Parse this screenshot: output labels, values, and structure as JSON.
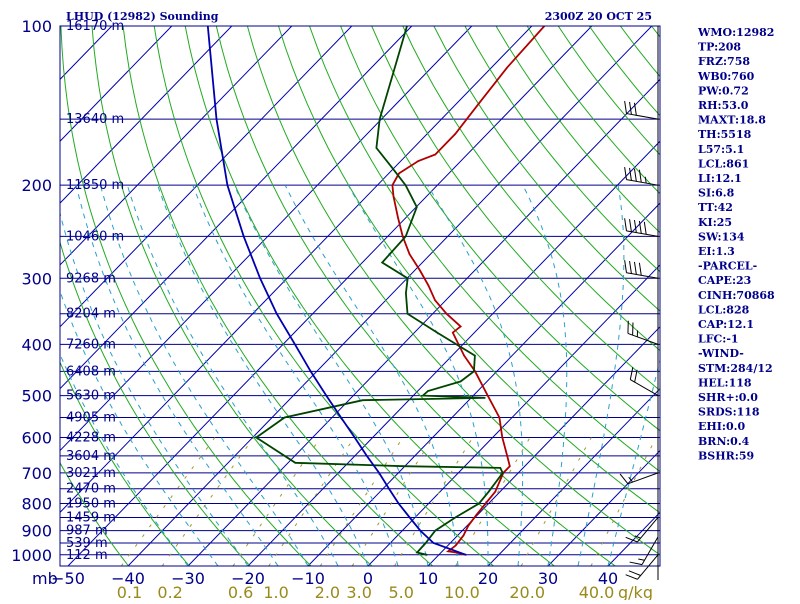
{
  "header": {
    "station_title": "LHUD (12982) Sounding",
    "valid_time": "2300Z 20 OCT 25"
  },
  "chart_data": {
    "type": "line",
    "title": "LHUD (12982) Sounding",
    "subtitle": "2300Z 20 OCT 25",
    "pressure_unit": "mb",
    "mixing_unit": "g/kg",
    "pressure_ticks": [
      100,
      200,
      300,
      400,
      500,
      600,
      700,
      800,
      900,
      1000
    ],
    "temperature_ticks": [
      -50,
      -40,
      -30,
      -20,
      -10,
      0,
      10,
      20,
      30,
      40
    ],
    "temperature_tick_labels": [
      "−50",
      "−40",
      "−30",
      "−20",
      "−10",
      "0",
      "10",
      "20",
      "30",
      "40"
    ],
    "mixing_ratio_ticks": [
      "0.1",
      "0.2",
      "0.6",
      "1.0",
      "2.0",
      "3.0",
      "5.0",
      "10.0",
      "20.0",
      "40.0"
    ],
    "height_labels": [
      {
        "p": 100,
        "label": "16170 m"
      },
      {
        "p": 150,
        "label": "13640 m"
      },
      {
        "p": 200,
        "label": "11850 m"
      },
      {
        "p": 250,
        "label": "10460 m"
      },
      {
        "p": 300,
        "label": "9268 m"
      },
      {
        "p": 350,
        "label": "8204 m"
      },
      {
        "p": 400,
        "label": "7260 m"
      },
      {
        "p": 450,
        "label": "6408 m"
      },
      {
        "p": 500,
        "label": "5630 m"
      },
      {
        "p": 550,
        "label": "4905 m"
      },
      {
        "p": 600,
        "label": "4228 m"
      },
      {
        "p": 650,
        "label": "3604 m"
      },
      {
        "p": 700,
        "label": "3021 m"
      },
      {
        "p": 750,
        "label": "2470 m"
      },
      {
        "p": 800,
        "label": "1950 m"
      },
      {
        "p": 850,
        "label": "1459 m"
      },
      {
        "p": 900,
        "label": "987 m"
      },
      {
        "p": 950,
        "label": "539 m"
      },
      {
        "p": 1000,
        "label": "112 m"
      }
    ],
    "series": [
      {
        "key": "temperature",
        "color": "#b00000",
        "points": [
          {
            "p": 1000,
            "t": 14.5
          },
          {
            "p": 990,
            "t": 12.5
          },
          {
            "p": 985,
            "t": 11.0
          },
          {
            "p": 960,
            "t": 11.3
          },
          {
            "p": 920,
            "t": 11.0
          },
          {
            "p": 880,
            "t": 10.2
          },
          {
            "p": 840,
            "t": 9.8
          },
          {
            "p": 800,
            "t": 9.5
          },
          {
            "p": 760,
            "t": 9.2
          },
          {
            "p": 700,
            "t": 7.5
          },
          {
            "p": 680,
            "t": 7.5
          },
          {
            "p": 650,
            "t": 5.4
          },
          {
            "p": 600,
            "t": 1.6
          },
          {
            "p": 550,
            "t": -2.1
          },
          {
            "p": 500,
            "t": -7.6
          },
          {
            "p": 450,
            "t": -13.6
          },
          {
            "p": 420,
            "t": -18.0
          },
          {
            "p": 380,
            "t": -23.6
          },
          {
            "p": 370,
            "t": -23.3
          },
          {
            "p": 350,
            "t": -27.7
          },
          {
            "p": 330,
            "t": -31.8
          },
          {
            "p": 310,
            "t": -35.2
          },
          {
            "p": 290,
            "t": -39.1
          },
          {
            "p": 270,
            "t": -43.5
          },
          {
            "p": 250,
            "t": -47.5
          },
          {
            "p": 230,
            "t": -51.4
          },
          {
            "p": 210,
            "t": -55.5
          },
          {
            "p": 200,
            "t": -57.5
          },
          {
            "p": 190,
            "t": -58.3
          },
          {
            "p": 180,
            "t": -57.1
          },
          {
            "p": 175,
            "t": -55.3
          },
          {
            "p": 160,
            "t": -55.3
          },
          {
            "p": 140,
            "t": -56.3
          },
          {
            "p": 120,
            "t": -57.4
          },
          {
            "p": 100,
            "t": -57.9
          }
        ]
      },
      {
        "key": "dewpoint",
        "color": "#004400",
        "points": [
          {
            "p": 1000,
            "t": 8.0
          },
          {
            "p": 990,
            "t": 6.0
          },
          {
            "p": 950,
            "t": 5.9
          },
          {
            "p": 900,
            "t": 5.5
          },
          {
            "p": 850,
            "t": 6.7
          },
          {
            "p": 800,
            "t": 8.4
          },
          {
            "p": 760,
            "t": 8.1
          },
          {
            "p": 700,
            "t": 7.4
          },
          {
            "p": 685,
            "t": 6.2
          },
          {
            "p": 680,
            "t": -10.2
          },
          {
            "p": 670,
            "t": -28.8
          },
          {
            "p": 600,
            "t": -39.4
          },
          {
            "p": 550,
            "t": -37.9
          },
          {
            "p": 510,
            "t": -27.7
          },
          {
            "p": 505,
            "t": -7.7
          },
          {
            "p": 500,
            "t": -18.4
          },
          {
            "p": 490,
            "t": -18.3
          },
          {
            "p": 470,
            "t": -14.4
          },
          {
            "p": 450,
            "t": -13.8
          },
          {
            "p": 420,
            "t": -16.2
          },
          {
            "p": 380,
            "t": -26.2
          },
          {
            "p": 350,
            "t": -34.2
          },
          {
            "p": 320,
            "t": -37.8
          },
          {
            "p": 300,
            "t": -39.9
          },
          {
            "p": 280,
            "t": -46.7
          },
          {
            "p": 250,
            "t": -47.0
          },
          {
            "p": 220,
            "t": -49.9
          },
          {
            "p": 200,
            "t": -55.3
          },
          {
            "p": 185,
            "t": -60.5
          },
          {
            "p": 170,
            "t": -66.2
          },
          {
            "p": 150,
            "t": -70.3
          },
          {
            "p": 100,
            "t": -80.8
          }
        ]
      },
      {
        "key": "parcel",
        "color": "#0000b0",
        "points": [
          {
            "p": 1000,
            "t": 14.5
          },
          {
            "p": 950,
            "t": 7.2
          },
          {
            "p": 900,
            "t": 3.0
          },
          {
            "p": 850,
            "t": -0.9
          },
          {
            "p": 800,
            "t": -5.0
          },
          {
            "p": 750,
            "t": -9.0
          },
          {
            "p": 700,
            "t": -13.2
          },
          {
            "p": 650,
            "t": -18.0
          },
          {
            "p": 600,
            "t": -23.0
          },
          {
            "p": 550,
            "t": -28.5
          },
          {
            "p": 500,
            "t": -34.5
          },
          {
            "p": 450,
            "t": -41.0
          },
          {
            "p": 400,
            "t": -48.0
          },
          {
            "p": 350,
            "t": -56.0
          },
          {
            "p": 300,
            "t": -64.5
          },
          {
            "p": 250,
            "t": -74.0
          },
          {
            "p": 200,
            "t": -85.0
          },
          {
            "p": 150,
            "t": -97.5
          },
          {
            "p": 100,
            "t": -114.0
          }
        ]
      }
    ],
    "wind_barbs": [
      {
        "p": 1000,
        "dir": 220,
        "spd": 20
      },
      {
        "p": 925,
        "dir": 210,
        "spd": 15
      },
      {
        "p": 850,
        "dir": 220,
        "spd": 15
      },
      {
        "p": 700,
        "dir": 250,
        "spd": 15
      },
      {
        "p": 500,
        "dir": 300,
        "spd": 20
      },
      {
        "p": 400,
        "dir": 290,
        "spd": 25
      },
      {
        "p": 300,
        "dir": 280,
        "spd": 40
      },
      {
        "p": 250,
        "dir": 280,
        "spd": 50
      },
      {
        "p": 200,
        "dir": 280,
        "spd": 45
      },
      {
        "p": 150,
        "dir": 280,
        "spd": 30
      }
    ],
    "colors": {
      "isobar": "#00008b",
      "isotherm": "#0000aa",
      "dry_adiabat": "#22aa22",
      "moist_adiabat": "#2aa0c8",
      "mixing_ratio": "#a09a30",
      "axis_text": "#00008b"
    }
  },
  "indices": [
    "WMO:12982",
    "TP:208",
    "FRZ:758",
    "WB0:760",
    "PW:0.72",
    "RH:53.0",
    "MAXT:18.8",
    "TH:5518",
    "L57:5.1",
    "LCL:861",
    "LI:12.1",
    "SI:6.8",
    "TT:42",
    "KI:25",
    "SW:134",
    "EI:1.3",
    "-PARCEL-",
    "CAPE:23",
    "CINH:70868",
    "LCL:828",
    "CAP:12.1",
    "LFC:-1",
    "-WIND-",
    "STM:284/12",
    "HEL:118",
    "SHR+:0.0",
    "SRDS:118",
    "EHI:0.0",
    "BRN:0.4",
    "BSHR:59"
  ]
}
